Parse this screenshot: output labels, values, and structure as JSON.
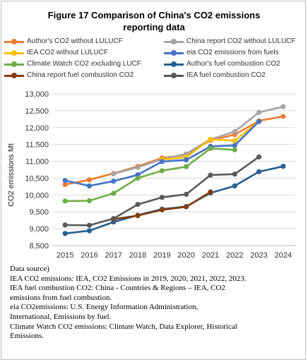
{
  "title_line1": "Figure 17 Comparison of China's CO2 emissions",
  "title_line2": "reporting data",
  "notes": {
    "line1": "Data source)",
    "line2": "IEA CO2 emissions: IEA, CO2 Emissions in 2019, 2020, 2021, 2022, 2023.",
    "line3": "IEA fuel combustion CO2: China - Countries & Regions – IEA, CO2",
    "line4": "emissions from fuel combustion.",
    "line5": "eia CO2emissions: U.S. Energy Information Administration,",
    "line6": "International, Emissions by fuel.",
    "line7": "Climate Watch CO2 emissions: Climate Watch, Data Explorer, Historical",
    "line8": "Emissions."
  },
  "chart_data": {
    "type": "line",
    "title": "Figure 17 Comparison of China's CO2 emissions reporting data",
    "xlabel": "",
    "ylabel": "CO2 emissions  Mt",
    "ylim": [
      8500,
      13000
    ],
    "yticks": [
      "8,500",
      "9,000",
      "9,500",
      "10,000",
      "10,500",
      "11,000",
      "11,500",
      "12,000",
      "12,500",
      "13,000"
    ],
    "x": [
      2015,
      2016,
      2017,
      2018,
      2019,
      2020,
      2021,
      2022,
      2023,
      2024
    ],
    "grid": "horizontal",
    "legend": "top",
    "series": [
      {
        "name": "Author's CO2 without LULUCF",
        "color": "#ED7D31",
        "values": [
          10310,
          10450,
          10640,
          10850,
          11100,
          11190,
          11620,
          11790,
          12200,
          12330
        ]
      },
      {
        "name": "China report CO2 without LULUCF",
        "color": "#A5A5A5",
        "values": [
          null,
          null,
          10630,
          10820,
          11060,
          11220,
          11650,
          11880,
          12450,
          12620
        ]
      },
      {
        "name": "IEA CO2 without LULUCF",
        "color": "#FFC000",
        "values": [
          null,
          null,
          null,
          null,
          11050,
          11120,
          11650,
          11610,
          12180,
          null
        ]
      },
      {
        "name": "eia CO2 emissions from fuels",
        "color": "#4472C4",
        "values": [
          10430,
          10270,
          10410,
          10600,
          10990,
          11040,
          11440,
          11470,
          12180,
          null
        ]
      },
      {
        "name": "Climate Watch CO2 excluding LUCF",
        "color": "#70AD47",
        "values": [
          9820,
          9830,
          10050,
          10500,
          10720,
          10840,
          11380,
          11340,
          null,
          null
        ]
      },
      {
        "name": "Author's fuel combustion CO2",
        "color": "#255E91",
        "values": [
          8860,
          8940,
          9200,
          9400,
          9580,
          9660,
          10060,
          10270,
          10690,
          10850
        ]
      },
      {
        "name": "China report fuel combustion CO2",
        "color": "#843C0C",
        "values": [
          null,
          null,
          9280,
          9390,
          9560,
          9650,
          10090,
          null,
          null,
          null
        ]
      },
      {
        "name": "IEA fuel combustion CO2",
        "color": "#595959",
        "values": [
          9110,
          9100,
          9300,
          9720,
          9930,
          10020,
          10590,
          10620,
          11130,
          null
        ]
      }
    ]
  }
}
